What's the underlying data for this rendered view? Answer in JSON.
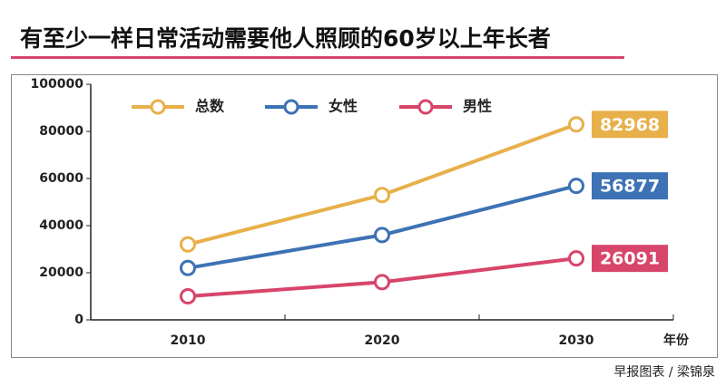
{
  "chart_data": {
    "type": "line",
    "title": "有至少一样日常活动需要他人照顾的60岁以上年长者",
    "source": "早报图表 / 梁锦泉",
    "x_label": "年份",
    "categories": [
      "2010",
      "2020",
      "2030"
    ],
    "series": [
      {
        "name": "总数",
        "color": "#e8b04a",
        "values": [
          32000,
          53000,
          82968
        ]
      },
      {
        "name": "女性",
        "color": "#3d72b4",
        "values": [
          22000,
          36000,
          56877
        ]
      },
      {
        "name": "男性",
        "color": "#d8456a",
        "values": [
          10000,
          16000,
          26091
        ]
      }
    ],
    "ylim": [
      0,
      100000
    ],
    "yticks": [
      0,
      20000,
      40000,
      60000,
      80000,
      100000
    ],
    "grid": false
  }
}
